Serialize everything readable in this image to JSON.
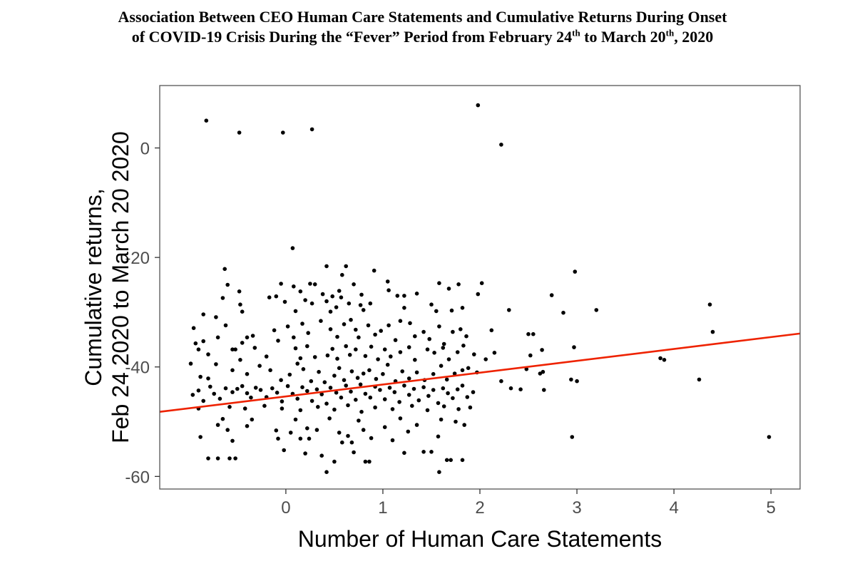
{
  "title": {
    "line1": "Association Between CEO Human Care Statements and Cumulative Returns During Onset",
    "line2_pre": "of COVID-19 Crisis During the “Fever” Period from February 24",
    "line2_sup1": "th",
    "line2_mid": " to March 20",
    "line2_sup2": "th",
    "line2_post": ", 2020"
  },
  "chart_data": {
    "type": "scatter",
    "xlabel": "Number of Human Care Statements",
    "ylabel_line1": "Cumulative returns,",
    "ylabel_line2": "Feb 24 2020 to March 20 2020",
    "xlim": [
      -1.3,
      5.3
    ],
    "ylim": [
      -62.3,
      11.4
    ],
    "xticks": [
      0,
      1,
      2,
      3,
      4,
      5
    ],
    "yticks": [
      0,
      -20,
      -40,
      -60
    ],
    "grid": false,
    "colors": {
      "points": "#000000",
      "fit_line": "#ee2200",
      "panel_border": "#555555",
      "tick_text": "#4d4d4d"
    },
    "fit_line": {
      "x": [
        -1.3,
        5.3
      ],
      "y": [
        -48.2,
        -33.9
      ]
    },
    "points": [
      [
        -0.82,
        5.0
      ],
      [
        -0.48,
        2.8
      ],
      [
        -0.03,
        2.8
      ],
      [
        0.27,
        3.4
      ],
      [
        1.98,
        7.8
      ],
      [
        2.22,
        0.6
      ],
      [
        0.07,
        -18.3
      ],
      [
        -0.63,
        -22.1
      ],
      [
        0.42,
        -21.6
      ],
      [
        0.62,
        -21.6
      ],
      [
        0.91,
        -22.4
      ],
      [
        2.98,
        -22.6
      ],
      [
        -0.6,
        -25.0
      ],
      [
        -0.48,
        -26.2
      ],
      [
        -0.1,
        -27.1
      ],
      [
        -0.05,
        -24.8
      ],
      [
        0.08,
        -25.3
      ],
      [
        0.15,
        -26.2
      ],
      [
        0.25,
        -24.8
      ],
      [
        0.3,
        -24.9
      ],
      [
        0.38,
        -26.7
      ],
      [
        0.48,
        -27.1
      ],
      [
        0.55,
        -26.1
      ],
      [
        0.58,
        -23.2
      ],
      [
        0.7,
        -24.9
      ],
      [
        0.78,
        -26.8
      ],
      [
        1.05,
        -24.4
      ],
      [
        1.06,
        -26.0
      ],
      [
        1.15,
        -27.0
      ],
      [
        1.22,
        -27.0
      ],
      [
        1.35,
        -26.6
      ],
      [
        1.58,
        -24.7
      ],
      [
        1.68,
        -25.7
      ],
      [
        1.78,
        -24.9
      ],
      [
        1.98,
        -26.7
      ],
      [
        2.02,
        -24.7
      ],
      [
        2.74,
        -26.9
      ],
      [
        -0.85,
        -30.4
      ],
      [
        -0.72,
        -30.9
      ],
      [
        -0.65,
        -27.4
      ],
      [
        -0.47,
        -28.6
      ],
      [
        -0.45,
        -29.9
      ],
      [
        -0.17,
        -27.3
      ],
      [
        -0.01,
        -28.1
      ],
      [
        0.1,
        -29.8
      ],
      [
        0.2,
        -27.8
      ],
      [
        0.27,
        -28.4
      ],
      [
        0.42,
        -28.0
      ],
      [
        0.46,
        -29.9
      ],
      [
        0.52,
        -29.1
      ],
      [
        0.57,
        -27.3
      ],
      [
        0.65,
        -28.4
      ],
      [
        0.77,
        -28.7
      ],
      [
        0.8,
        -29.6
      ],
      [
        0.87,
        -28.4
      ],
      [
        1.22,
        -29.2
      ],
      [
        1.5,
        -28.6
      ],
      [
        1.55,
        -29.8
      ],
      [
        1.71,
        -29.7
      ],
      [
        1.82,
        -29.2
      ],
      [
        2.3,
        -29.6
      ],
      [
        2.86,
        -30.1
      ],
      [
        3.2,
        -29.6
      ],
      [
        4.37,
        -28.6
      ],
      [
        -0.95,
        -32.9
      ],
      [
        -0.93,
        -35.7
      ],
      [
        -0.85,
        -35.3
      ],
      [
        -0.7,
        -34.6
      ],
      [
        -0.62,
        -32.4
      ],
      [
        -0.52,
        -36.8
      ],
      [
        -0.45,
        -35.6
      ],
      [
        -0.4,
        -34.6
      ],
      [
        -0.34,
        -34.3
      ],
      [
        -0.12,
        -33.3
      ],
      [
        -0.08,
        -35.2
      ],
      [
        0.02,
        -32.6
      ],
      [
        0.08,
        -34.6
      ],
      [
        0.17,
        -32.1
      ],
      [
        0.23,
        -33.8
      ],
      [
        0.36,
        -31.6
      ],
      [
        0.46,
        -33.1
      ],
      [
        0.53,
        -34.5
      ],
      [
        0.6,
        -32.2
      ],
      [
        0.67,
        -31.4
      ],
      [
        0.72,
        -33.2
      ],
      [
        0.75,
        -34.6
      ],
      [
        0.85,
        -32.4
      ],
      [
        0.92,
        -34.1
      ],
      [
        0.98,
        -33.4
      ],
      [
        1.06,
        -32.4
      ],
      [
        1.13,
        -35.1
      ],
      [
        1.18,
        -31.6
      ],
      [
        1.28,
        -32.0
      ],
      [
        1.33,
        -34.4
      ],
      [
        1.42,
        -33.6
      ],
      [
        1.48,
        -34.9
      ],
      [
        1.58,
        -32.6
      ],
      [
        1.63,
        -35.8
      ],
      [
        1.72,
        -33.6
      ],
      [
        1.8,
        -33.1
      ],
      [
        1.86,
        -34.4
      ],
      [
        2.12,
        -33.3
      ],
      [
        2.5,
        -34.0
      ],
      [
        2.55,
        -34.0
      ],
      [
        4.4,
        -33.6
      ],
      [
        -0.9,
        -36.8
      ],
      [
        -0.8,
        -37.7
      ],
      [
        -0.55,
        -36.8
      ],
      [
        -0.47,
        -38.7
      ],
      [
        -0.32,
        -36.5
      ],
      [
        -0.2,
        -38.1
      ],
      [
        0.1,
        -36.6
      ],
      [
        0.15,
        -38.4
      ],
      [
        0.22,
        -36.2
      ],
      [
        0.3,
        -38.2
      ],
      [
        0.43,
        -37.9
      ],
      [
        0.48,
        -36.7
      ],
      [
        0.53,
        -38.5
      ],
      [
        0.62,
        -36.2
      ],
      [
        0.66,
        -37.8
      ],
      [
        0.72,
        -36.8
      ],
      [
        0.82,
        -38.0
      ],
      [
        0.88,
        -36.3
      ],
      [
        0.95,
        -38.6
      ],
      [
        1.02,
        -36.8
      ],
      [
        1.08,
        -38.1
      ],
      [
        1.18,
        -37.3
      ],
      [
        1.27,
        -36.4
      ],
      [
        1.33,
        -38.7
      ],
      [
        1.46,
        -36.8
      ],
      [
        1.53,
        -37.4
      ],
      [
        1.62,
        -36.5
      ],
      [
        1.68,
        -38.6
      ],
      [
        1.77,
        -37.3
      ],
      [
        1.83,
        -36.1
      ],
      [
        1.94,
        -37.7
      ],
      [
        2.06,
        -38.6
      ],
      [
        2.15,
        -37.4
      ],
      [
        2.52,
        -37.9
      ],
      [
        2.64,
        -36.9
      ],
      [
        2.97,
        -36.4
      ],
      [
        3.86,
        -38.4
      ],
      [
        3.9,
        -38.7
      ],
      [
        -0.98,
        -39.4
      ],
      [
        -0.88,
        -41.8
      ],
      [
        -0.8,
        -42.1
      ],
      [
        -0.72,
        -39.5
      ],
      [
        -0.55,
        -40.6
      ],
      [
        -0.4,
        -41.3
      ],
      [
        -0.27,
        -39.8
      ],
      [
        -0.16,
        -40.6
      ],
      [
        -0.05,
        -42.4
      ],
      [
        0.04,
        -41.4
      ],
      [
        0.12,
        -39.4
      ],
      [
        0.18,
        -40.4
      ],
      [
        0.26,
        -42.6
      ],
      [
        0.34,
        -40.9
      ],
      [
        0.4,
        -42.8
      ],
      [
        0.5,
        -41.6
      ],
      [
        0.55,
        -40.2
      ],
      [
        0.6,
        -42.4
      ],
      [
        0.68,
        -40.8
      ],
      [
        0.74,
        -42.0
      ],
      [
        0.8,
        -41.2
      ],
      [
        0.86,
        -40.6
      ],
      [
        0.93,
        -42.2
      ],
      [
        1.0,
        -41.3
      ],
      [
        1.05,
        -39.6
      ],
      [
        1.13,
        -42.6
      ],
      [
        1.2,
        -40.8
      ],
      [
        1.27,
        -42.1
      ],
      [
        1.35,
        -41.0
      ],
      [
        1.43,
        -42.4
      ],
      [
        1.52,
        -41.3
      ],
      [
        1.6,
        -39.8
      ],
      [
        1.66,
        -42.3
      ],
      [
        1.74,
        -41.2
      ],
      [
        1.82,
        -40.6
      ],
      [
        1.88,
        -40.2
      ],
      [
        1.97,
        -41.0
      ],
      [
        2.22,
        -42.6
      ],
      [
        2.48,
        -40.4
      ],
      [
        2.62,
        -41.2
      ],
      [
        2.65,
        -40.9
      ],
      [
        2.94,
        -42.3
      ],
      [
        3.0,
        -42.6
      ],
      [
        4.26,
        -42.3
      ],
      [
        -0.96,
        -45.1
      ],
      [
        -0.9,
        -44.3
      ],
      [
        -0.85,
        -46.2
      ],
      [
        -0.78,
        -43.6
      ],
      [
        -0.74,
        -44.9
      ],
      [
        -0.68,
        -45.8
      ],
      [
        -0.62,
        -43.9
      ],
      [
        -0.55,
        -44.6
      ],
      [
        -0.5,
        -44.0
      ],
      [
        -0.45,
        -43.5
      ],
      [
        -0.4,
        -44.8
      ],
      [
        -0.36,
        -45.6
      ],
      [
        -0.31,
        -43.8
      ],
      [
        -0.26,
        -44.2
      ],
      [
        -0.2,
        -45.5
      ],
      [
        -0.14,
        -43.9
      ],
      [
        -0.09,
        -44.7
      ],
      [
        -0.04,
        -46.3
      ],
      [
        0.02,
        -43.5
      ],
      [
        0.07,
        -44.9
      ],
      [
        0.12,
        -45.8
      ],
      [
        0.17,
        -43.7
      ],
      [
        0.22,
        -44.4
      ],
      [
        0.27,
        -46.2
      ],
      [
        0.32,
        -44.1
      ],
      [
        0.37,
        -45.0
      ],
      [
        0.42,
        -46.7
      ],
      [
        0.46,
        -43.8
      ],
      [
        0.52,
        -44.7
      ],
      [
        0.57,
        -45.6
      ],
      [
        0.62,
        -43.4
      ],
      [
        0.67,
        -44.5
      ],
      [
        0.72,
        -46.0
      ],
      [
        0.77,
        -43.2
      ],
      [
        0.82,
        -44.9
      ],
      [
        0.87,
        -45.6
      ],
      [
        0.92,
        -43.6
      ],
      [
        0.97,
        -44.2
      ],
      [
        1.02,
        -45.9
      ],
      [
        1.07,
        -43.8
      ],
      [
        1.12,
        -44.6
      ],
      [
        1.17,
        -46.4
      ],
      [
        1.22,
        -43.4
      ],
      [
        1.27,
        -45.1
      ],
      [
        1.32,
        -44.0
      ],
      [
        1.37,
        -46.1
      ],
      [
        1.42,
        -43.7
      ],
      [
        1.47,
        -45.3
      ],
      [
        1.52,
        -44.2
      ],
      [
        1.57,
        -46.6
      ],
      [
        1.62,
        -43.9
      ],
      [
        1.67,
        -44.8
      ],
      [
        1.72,
        -45.7
      ],
      [
        1.77,
        -44.1
      ],
      [
        1.82,
        -43.4
      ],
      [
        1.87,
        -45.5
      ],
      [
        1.93,
        -44.6
      ],
      [
        2.32,
        -43.9
      ],
      [
        2.42,
        -44.1
      ],
      [
        2.66,
        -44.2
      ],
      [
        -0.9,
        -47.6
      ],
      [
        -0.58,
        -47.3
      ],
      [
        -0.42,
        -47.6
      ],
      [
        -0.22,
        -47.1
      ],
      [
        -0.04,
        -47.6
      ],
      [
        0.15,
        -47.9
      ],
      [
        0.33,
        -47.3
      ],
      [
        0.5,
        -47.8
      ],
      [
        0.64,
        -47.0
      ],
      [
        0.78,
        -48.2
      ],
      [
        0.92,
        -47.4
      ],
      [
        1.1,
        -47.7
      ],
      [
        1.3,
        -47.1
      ],
      [
        1.46,
        -47.9
      ],
      [
        1.63,
        -47.2
      ],
      [
        1.78,
        -47.7
      ],
      [
        1.9,
        -47.4
      ],
      [
        -0.65,
        -49.5
      ],
      [
        -0.35,
        -49.6
      ],
      [
        0.1,
        -49.6
      ],
      [
        0.45,
        -49.4
      ],
      [
        0.75,
        -49.8
      ],
      [
        1.18,
        -49.4
      ],
      [
        1.6,
        -49.6
      ],
      [
        1.75,
        -50.0
      ],
      [
        -0.7,
        -50.6
      ],
      [
        -0.6,
        -51.5
      ],
      [
        -0.4,
        -50.8
      ],
      [
        -0.1,
        -51.6
      ],
      [
        0.05,
        -52.0
      ],
      [
        0.22,
        -51.2
      ],
      [
        0.32,
        -51.5
      ],
      [
        0.55,
        -52.0
      ],
      [
        0.64,
        -52.6
      ],
      [
        0.8,
        -51.5
      ],
      [
        1.02,
        -51.0
      ],
      [
        1.26,
        -51.8
      ],
      [
        1.35,
        -50.6
      ],
      [
        1.57,
        -52.7
      ],
      [
        1.84,
        -50.6
      ],
      [
        2.95,
        -52.8
      ],
      [
        4.98,
        -52.8
      ],
      [
        -0.88,
        -52.8
      ],
      [
        -0.55,
        -53.5
      ],
      [
        -0.08,
        -53.1
      ],
      [
        0.15,
        -53.1
      ],
      [
        0.24,
        -53.1
      ],
      [
        0.58,
        -53.8
      ],
      [
        0.68,
        -53.8
      ],
      [
        0.88,
        -53.0
      ],
      [
        1.1,
        -53.4
      ],
      [
        -0.8,
        -56.7
      ],
      [
        -0.7,
        -56.7
      ],
      [
        -0.58,
        -56.7
      ],
      [
        -0.52,
        -56.7
      ],
      [
        -0.02,
        -55.2
      ],
      [
        0.2,
        -55.8
      ],
      [
        0.37,
        -56.2
      ],
      [
        0.5,
        -57.3
      ],
      [
        0.7,
        -55.6
      ],
      [
        0.82,
        -57.3
      ],
      [
        0.86,
        -57.3
      ],
      [
        1.22,
        -55.7
      ],
      [
        1.42,
        -55.5
      ],
      [
        1.5,
        -55.5
      ],
      [
        1.66,
        -57.0
      ],
      [
        1.7,
        -57.0
      ],
      [
        1.82,
        -57.0
      ],
      [
        0.42,
        -59.2
      ],
      [
        1.58,
        -59.2
      ]
    ]
  }
}
